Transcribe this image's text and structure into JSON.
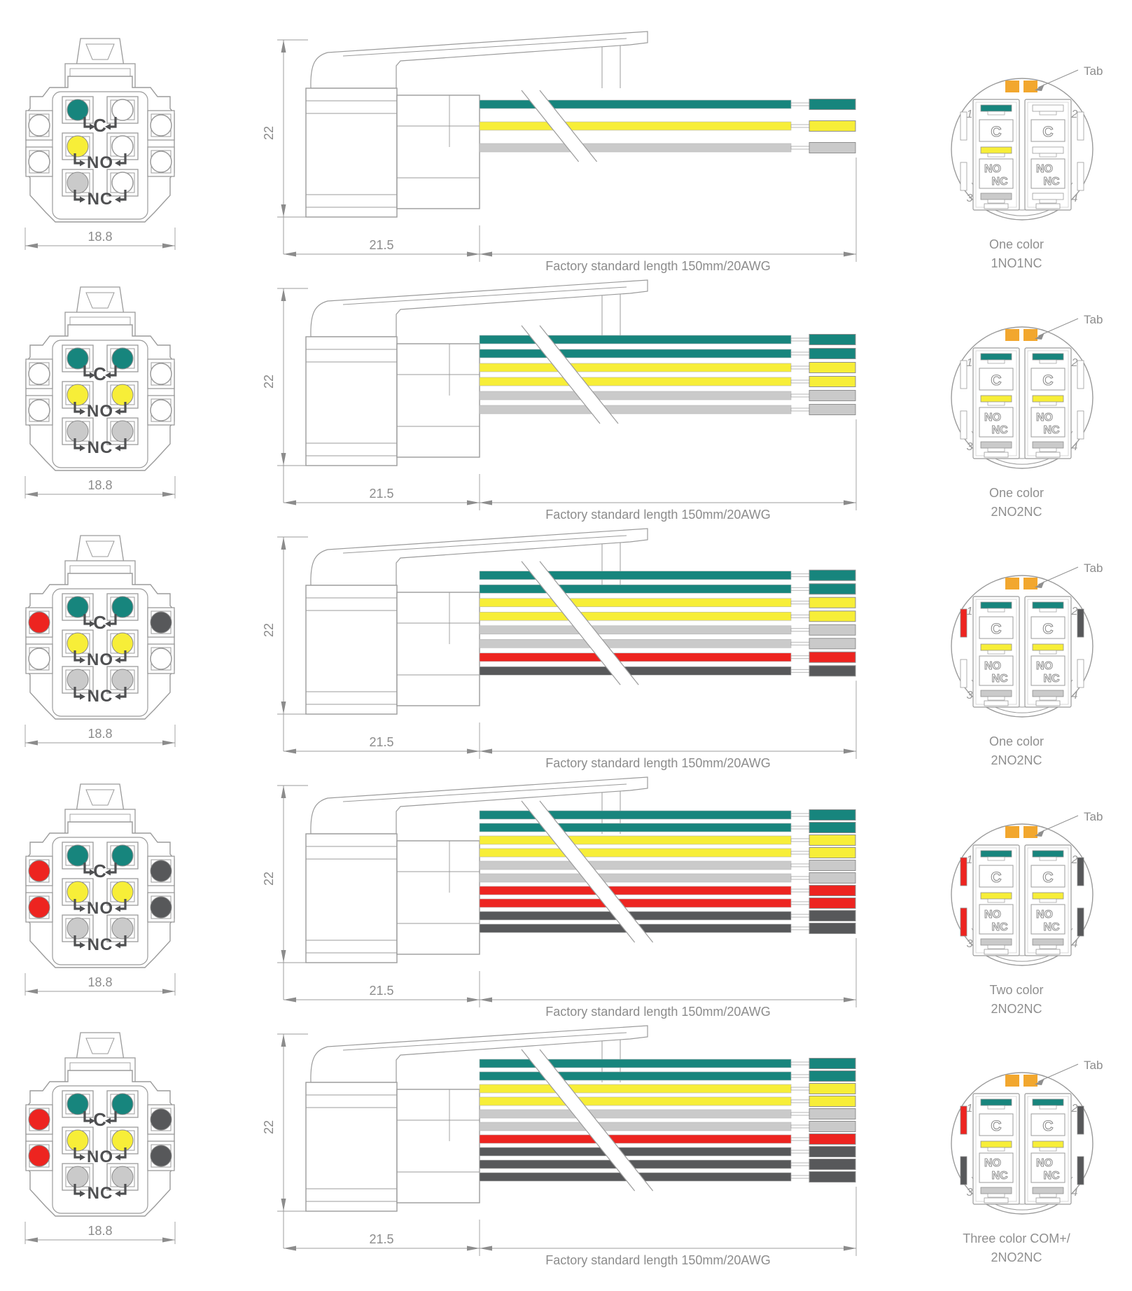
{
  "colors": {
    "teal": "#17857D",
    "yellow": "#F7EE38",
    "gray": "#CACACA",
    "red": "#ED2420",
    "dark": "#57585A",
    "white": "#FFFFFF",
    "orange": "#F2A72E",
    "line": "#9B9B9B",
    "dim_text": "#8C8C8C",
    "label_text": "#4F5052",
    "caption_text": "#8F8F8F"
  },
  "labels": {
    "terminal_c": "C",
    "terminal_no": "NO",
    "terminal_nc": "NC",
    "tab": "Tab",
    "dim_front_width": "18.8",
    "dim_housing_height": "22",
    "dim_housing_width": "21.5",
    "wire_length_note": "Factory standard length 150mm/20AWG",
    "back_corner_numbers": [
      "1",
      "2",
      "3",
      "4"
    ]
  },
  "rows": [
    {
      "caption_line1": "One color",
      "caption_line2": "1NO1NC",
      "front": {
        "c": [
          "teal",
          "white"
        ],
        "no": [
          "yellow",
          "white"
        ],
        "nc": [
          "gray",
          "white"
        ],
        "side_left": [
          "white",
          "white"
        ],
        "side_right": [
          "white",
          "white"
        ]
      },
      "wires": [
        "teal",
        "yellow",
        "gray"
      ],
      "back": {
        "left_bars": [
          "teal",
          "yellow",
          "gray"
        ],
        "right_bars": [
          "white",
          "white",
          "white"
        ],
        "rail_left": [
          "white",
          "white"
        ],
        "rail_right": [
          "white",
          "white"
        ]
      }
    },
    {
      "caption_line1": "One color",
      "caption_line2": "2NO2NC",
      "front": {
        "c": [
          "teal",
          "teal"
        ],
        "no": [
          "yellow",
          "yellow"
        ],
        "nc": [
          "gray",
          "gray"
        ],
        "side_left": [
          "white",
          "white"
        ],
        "side_right": [
          "white",
          "white"
        ]
      },
      "wires": [
        "teal",
        "teal",
        "yellow",
        "yellow",
        "gray",
        "gray"
      ],
      "back": {
        "left_bars": [
          "teal",
          "yellow",
          "gray"
        ],
        "right_bars": [
          "teal",
          "yellow",
          "gray"
        ],
        "rail_left": [
          "white",
          "white"
        ],
        "rail_right": [
          "white",
          "white"
        ]
      }
    },
    {
      "caption_line1": "One color",
      "caption_line2": "2NO2NC",
      "front": {
        "c": [
          "teal",
          "teal"
        ],
        "no": [
          "yellow",
          "yellow"
        ],
        "nc": [
          "gray",
          "gray"
        ],
        "side_left": [
          "red",
          "white"
        ],
        "side_right": [
          "dark",
          "white"
        ]
      },
      "wires": [
        "teal",
        "teal",
        "yellow",
        "yellow",
        "gray",
        "gray",
        "red",
        "dark"
      ],
      "back": {
        "left_bars": [
          "teal",
          "yellow",
          "gray"
        ],
        "right_bars": [
          "teal",
          "yellow",
          "gray"
        ],
        "rail_left": [
          "red",
          "white"
        ],
        "rail_right": [
          "dark",
          "white"
        ]
      }
    },
    {
      "caption_line1": "Two color",
      "caption_line2": "2NO2NC",
      "front": {
        "c": [
          "teal",
          "teal"
        ],
        "no": [
          "yellow",
          "yellow"
        ],
        "nc": [
          "gray",
          "gray"
        ],
        "side_left": [
          "red",
          "red"
        ],
        "side_right": [
          "dark",
          "dark"
        ]
      },
      "wires": [
        "teal",
        "teal",
        "yellow",
        "yellow",
        "gray",
        "gray",
        "red",
        "red",
        "dark",
        "dark"
      ],
      "back": {
        "left_bars": [
          "teal",
          "yellow",
          "gray"
        ],
        "right_bars": [
          "teal",
          "yellow",
          "gray"
        ],
        "rail_left": [
          "red",
          "red"
        ],
        "rail_right": [
          "dark",
          "dark"
        ]
      }
    },
    {
      "caption_line1": "Three color COM+/",
      "caption_line2": "2NO2NC",
      "front": {
        "c": [
          "teal",
          "teal"
        ],
        "no": [
          "yellow",
          "yellow"
        ],
        "nc": [
          "gray",
          "gray"
        ],
        "side_left": [
          "red",
          "red"
        ],
        "side_right": [
          "dark",
          "dark"
        ]
      },
      "wires": [
        "teal",
        "teal",
        "yellow",
        "yellow",
        "gray",
        "gray",
        "red",
        "dark",
        "dark",
        "dark"
      ],
      "back": {
        "left_bars": [
          "teal",
          "yellow",
          "gray"
        ],
        "right_bars": [
          "teal",
          "yellow",
          "gray"
        ],
        "rail_left": [
          "red",
          "dark"
        ],
        "rail_right": [
          "dark",
          "dark"
        ]
      }
    }
  ]
}
